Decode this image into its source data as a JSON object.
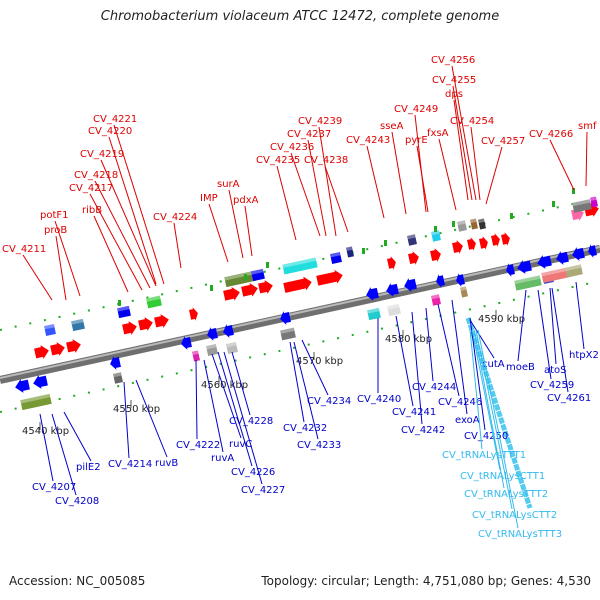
{
  "title": "Chromobacterium violaceum ATCC 12472, complete genome",
  "footer": {
    "accession": "Accession: NC_005085",
    "summary": "Topology: circular; Length: 4,751,080 bp; Genes: 4,530"
  },
  "scale_labels": [
    "4540 kbp",
    "4550 kbp",
    "4560 kbp",
    "4570 kbp",
    "4580 kbp",
    "4590 kbp"
  ],
  "colors": {
    "forward_label": "#dd0000",
    "reverse_label": "#0000cc",
    "trna_label": "#33bbee",
    "backbone": "#888888",
    "red_gene": "#ff0000",
    "blue_gene": "#0000ff",
    "green_tick": "#22aa22"
  },
  "forward_genes": [
    {
      "label": "CV_4211"
    },
    {
      "label": "proB"
    },
    {
      "label": "potF1"
    },
    {
      "label": "ribB"
    },
    {
      "label": "CV_4217"
    },
    {
      "label": "CV_4218"
    },
    {
      "label": "CV_4219"
    },
    {
      "label": "CV_4220"
    },
    {
      "label": "CV_4221"
    },
    {
      "label": "CV_4224"
    },
    {
      "label": "IMP"
    },
    {
      "label": "surA"
    },
    {
      "label": "pdxA"
    },
    {
      "label": "CV_4235"
    },
    {
      "label": "CV_4236"
    },
    {
      "label": "CV_4237"
    },
    {
      "label": "CV_4239"
    },
    {
      "label": "CV_4238"
    },
    {
      "label": "CV_4243"
    },
    {
      "label": "sseA"
    },
    {
      "label": "CV_4249"
    },
    {
      "label": "pyrE"
    },
    {
      "label": "fxsA"
    },
    {
      "label": "CV_4256"
    },
    {
      "label": "CV_4255"
    },
    {
      "label": "dps"
    },
    {
      "label": "CV_4254"
    },
    {
      "label": "CV_4257"
    },
    {
      "label": "CV_4266"
    },
    {
      "label": "smf"
    }
  ],
  "reverse_genes": [
    {
      "label": "CV_4207"
    },
    {
      "label": "CV_4208"
    },
    {
      "label": "pilE2"
    },
    {
      "label": "CV_4214"
    },
    {
      "label": "ruvB"
    },
    {
      "label": "CV_4222"
    },
    {
      "label": "ruvA"
    },
    {
      "label": "ruvC"
    },
    {
      "label": "CV_4226"
    },
    {
      "label": "CV_4227"
    },
    {
      "label": "CV_4228"
    },
    {
      "label": "CV_4232"
    },
    {
      "label": "CV_4233"
    },
    {
      "label": "CV_4234"
    },
    {
      "label": "CV_4240"
    },
    {
      "label": "CV_4241"
    },
    {
      "label": "CV_4242"
    },
    {
      "label": "CV_4244"
    },
    {
      "label": "CV_4246"
    },
    {
      "label": "exoA"
    },
    {
      "label": "cutA"
    },
    {
      "label": "CV_4250"
    },
    {
      "label": "moeB"
    },
    {
      "label": "CV_4259"
    },
    {
      "label": "atoS"
    },
    {
      "label": "CV_4261"
    },
    {
      "label": "htpX2"
    }
  ],
  "trna_genes": [
    {
      "label": "CV_tRNALysTTT1"
    },
    {
      "label": "CV_tRNALysCTT1"
    },
    {
      "label": "CV_tRNALysTTT2"
    },
    {
      "label": "CV_tRNALysCTT2"
    },
    {
      "label": "CV_tRNALysTTT3"
    }
  ]
}
